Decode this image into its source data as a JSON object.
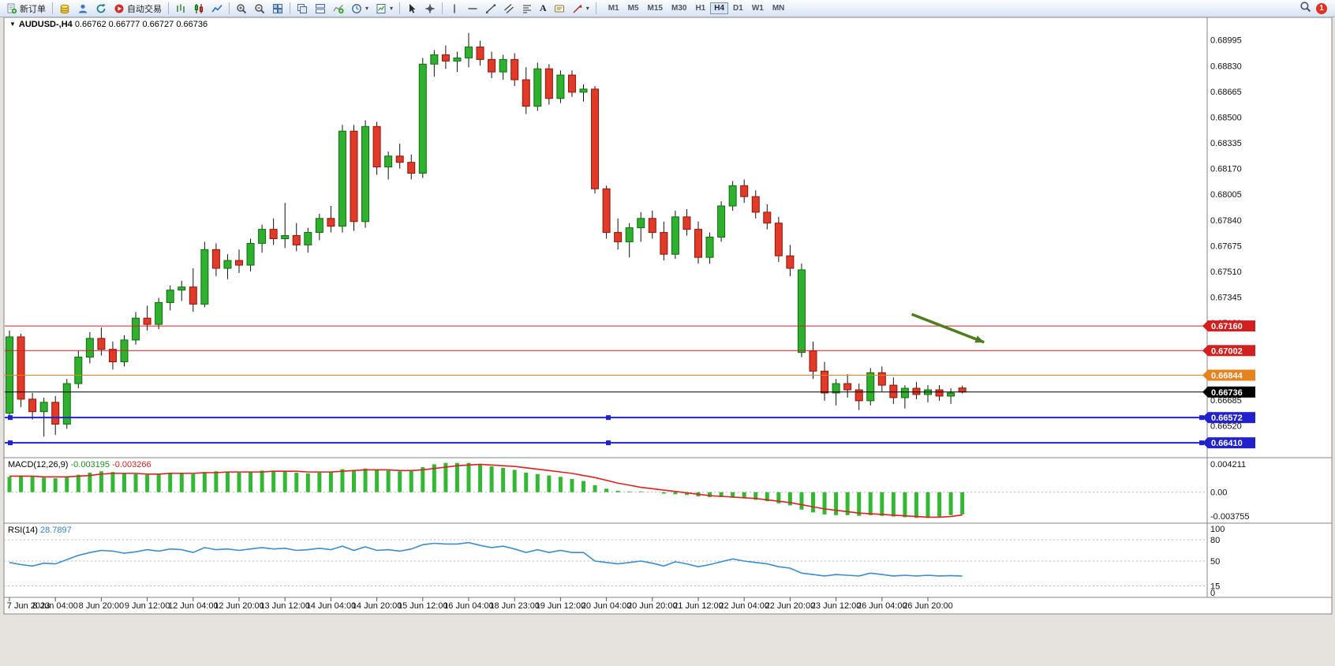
{
  "toolbar": {
    "new_order_label": "新订单",
    "autotrading_label": "自动交易",
    "text_tool_label": "A",
    "active_timeframe": "H4",
    "timeframes": [
      "M1",
      "M5",
      "M15",
      "M30",
      "H1",
      "H4",
      "D1",
      "W1",
      "MN"
    ],
    "notification_count": "1"
  },
  "chart_header": {
    "symbol": "AUDUSD-,H4",
    "open": "0.66762",
    "high": "0.66777",
    "low": "0.66727",
    "close": "0.66736"
  },
  "macd_panel": {
    "title": "MACD(12,26,9)",
    "value_main": "-0.003195",
    "value_signal": "-0.003266"
  },
  "rsi_panel": {
    "title": "RSI(14)",
    "value": "28.7897"
  },
  "colors": {
    "bull": "#2fb02f",
    "bull_edge": "#0c6e0c",
    "bear": "#e23a28",
    "bear_edge": "#8e1508",
    "wick": "#111111",
    "macd_hist": "#33b833",
    "macd_signal": "#e02020",
    "rsi_line": "#3c8cd0",
    "frame": "#848484",
    "grid_dash": "#b8b8b8",
    "arrow": "#4e7d1e"
  },
  "chart_data": {
    "type": "candlestick",
    "symbol": "AUDUSD",
    "timeframe": "H4",
    "ylim": [
      0.6634,
      0.6912
    ],
    "y_axis_labels": [
      0.68995,
      0.6883,
      0.68665,
      0.685,
      0.68335,
      0.6817,
      0.68005,
      0.6784,
      0.67675,
      0.6751,
      0.67345,
      0.6718,
      0.67015,
      0.6685,
      0.66685,
      0.6652
    ],
    "x_labels": [
      "7 Jun 2023",
      "8 Jun 04:00",
      "8 Jun 20:00",
      "9 Jun 12:00",
      "12 Jun 04:00",
      "12 Jun 20:00",
      "13 Jun 12:00",
      "14 Jun 04:00",
      "14 Jun 20:00",
      "15 Jun 12:00",
      "16 Jun 04:00",
      "18 Jun 23:00",
      "19 Jun 12:00",
      "20 Jun 04:00",
      "20 Jun 20:00",
      "21 Jun 12:00",
      "22 Jun 04:00",
      "22 Jun 20:00",
      "23 Jun 12:00",
      "26 Jun 04:00",
      "26 Jun 20:00"
    ],
    "candles": [
      [
        0.666,
        0.6713,
        0.6657,
        0.6709
      ],
      [
        0.6709,
        0.6711,
        0.6664,
        0.6669
      ],
      [
        0.6669,
        0.6673,
        0.6656,
        0.6661
      ],
      [
        0.6661,
        0.667,
        0.6645,
        0.6667
      ],
      [
        0.6667,
        0.6671,
        0.6646,
        0.6653
      ],
      [
        0.6653,
        0.6682,
        0.665,
        0.6679
      ],
      [
        0.6679,
        0.67,
        0.6676,
        0.6696
      ],
      [
        0.6696,
        0.6712,
        0.6692,
        0.6708
      ],
      [
        0.6708,
        0.6715,
        0.6697,
        0.6701
      ],
      [
        0.6701,
        0.6706,
        0.6688,
        0.6693
      ],
      [
        0.6693,
        0.671,
        0.669,
        0.6707
      ],
      [
        0.6707,
        0.6725,
        0.6704,
        0.6721
      ],
      [
        0.6721,
        0.6729,
        0.6713,
        0.6717
      ],
      [
        0.6717,
        0.6734,
        0.6714,
        0.6731
      ],
      [
        0.6731,
        0.6742,
        0.6726,
        0.6739
      ],
      [
        0.6739,
        0.6745,
        0.6732,
        0.6741
      ],
      [
        0.6741,
        0.6753,
        0.6725,
        0.673
      ],
      [
        0.673,
        0.677,
        0.6728,
        0.6765
      ],
      [
        0.6765,
        0.6769,
        0.6748,
        0.6753
      ],
      [
        0.6753,
        0.6762,
        0.6746,
        0.6758
      ],
      [
        0.6758,
        0.6765,
        0.675,
        0.6755
      ],
      [
        0.6755,
        0.6772,
        0.6751,
        0.6769
      ],
      [
        0.6769,
        0.6781,
        0.6763,
        0.6778
      ],
      [
        0.6778,
        0.6785,
        0.6768,
        0.6772
      ],
      [
        0.6772,
        0.6795,
        0.6766,
        0.6774
      ],
      [
        0.6774,
        0.6782,
        0.6764,
        0.6768
      ],
      [
        0.6768,
        0.6779,
        0.6763,
        0.6776
      ],
      [
        0.6776,
        0.6788,
        0.6771,
        0.6785
      ],
      [
        0.6785,
        0.6793,
        0.6776,
        0.678
      ],
      [
        0.678,
        0.6845,
        0.6776,
        0.6841
      ],
      [
        0.6841,
        0.6845,
        0.6777,
        0.6783
      ],
      [
        0.6783,
        0.6848,
        0.6779,
        0.6844
      ],
      [
        0.6844,
        0.6847,
        0.6813,
        0.6818
      ],
      [
        0.6818,
        0.6828,
        0.681,
        0.6825
      ],
      [
        0.6825,
        0.6833,
        0.6817,
        0.6821
      ],
      [
        0.6821,
        0.6826,
        0.681,
        0.6814
      ],
      [
        0.6814,
        0.6888,
        0.6811,
        0.6884
      ],
      [
        0.6884,
        0.6893,
        0.6876,
        0.689
      ],
      [
        0.689,
        0.6896,
        0.6881,
        0.6886
      ],
      [
        0.6886,
        0.6892,
        0.6879,
        0.6888
      ],
      [
        0.6888,
        0.6904,
        0.6882,
        0.6895
      ],
      [
        0.6895,
        0.6899,
        0.6883,
        0.6887
      ],
      [
        0.6887,
        0.6892,
        0.6875,
        0.6879
      ],
      [
        0.6879,
        0.689,
        0.6874,
        0.6887
      ],
      [
        0.6887,
        0.6891,
        0.687,
        0.6874
      ],
      [
        0.6874,
        0.6882,
        0.6852,
        0.6857
      ],
      [
        0.6857,
        0.6885,
        0.6854,
        0.6881
      ],
      [
        0.6881,
        0.6884,
        0.6858,
        0.6862
      ],
      [
        0.6862,
        0.688,
        0.6859,
        0.6877
      ],
      [
        0.6877,
        0.688,
        0.6863,
        0.6866
      ],
      [
        0.6866,
        0.6871,
        0.686,
        0.6868
      ],
      [
        0.6868,
        0.687,
        0.6801,
        0.6804
      ],
      [
        0.6804,
        0.6806,
        0.6772,
        0.6776
      ],
      [
        0.6776,
        0.6785,
        0.6765,
        0.677
      ],
      [
        0.677,
        0.6782,
        0.676,
        0.6779
      ],
      [
        0.6779,
        0.6789,
        0.677,
        0.6785
      ],
      [
        0.6785,
        0.679,
        0.6772,
        0.6776
      ],
      [
        0.6776,
        0.6783,
        0.6758,
        0.6762
      ],
      [
        0.6762,
        0.679,
        0.6759,
        0.6786
      ],
      [
        0.6786,
        0.6791,
        0.6774,
        0.6778
      ],
      [
        0.6778,
        0.6783,
        0.6756,
        0.676
      ],
      [
        0.676,
        0.6776,
        0.6756,
        0.6773
      ],
      [
        0.6773,
        0.6796,
        0.677,
        0.6793
      ],
      [
        0.6793,
        0.6809,
        0.679,
        0.6806
      ],
      [
        0.6806,
        0.681,
        0.6795,
        0.6799
      ],
      [
        0.6799,
        0.6803,
        0.6785,
        0.6789
      ],
      [
        0.6789,
        0.6794,
        0.6778,
        0.6782
      ],
      [
        0.6782,
        0.6786,
        0.6757,
        0.6761
      ],
      [
        0.6761,
        0.6768,
        0.6748,
        0.6753
      ],
      [
        0.6699,
        0.6756,
        0.6696,
        0.6752
      ],
      [
        0.67,
        0.6706,
        0.6682,
        0.6687
      ],
      [
        0.6687,
        0.6693,
        0.6668,
        0.6673
      ],
      [
        0.6673,
        0.6682,
        0.6665,
        0.6679
      ],
      [
        0.6679,
        0.6685,
        0.667,
        0.6675
      ],
      [
        0.6675,
        0.6679,
        0.6662,
        0.6668
      ],
      [
        0.6668,
        0.6689,
        0.6665,
        0.6686
      ],
      [
        0.6686,
        0.669,
        0.6674,
        0.6678
      ],
      [
        0.6678,
        0.6683,
        0.6666,
        0.667
      ],
      [
        0.667,
        0.6678,
        0.6663,
        0.6676
      ],
      [
        0.6676,
        0.668,
        0.6669,
        0.6672
      ],
      [
        0.6672,
        0.6678,
        0.6667,
        0.6675
      ],
      [
        0.6675,
        0.6678,
        0.6668,
        0.6671
      ],
      [
        0.6671,
        0.6676,
        0.6666,
        0.6673
      ],
      [
        0.66762,
        0.66777,
        0.66727,
        0.66736
      ]
    ],
    "price_lines": [
      {
        "price": 0.6716,
        "label": "0.67160",
        "color": "#d22020",
        "width": 1,
        "selected": false
      },
      {
        "price": 0.67002,
        "label": "0.67002",
        "color": "#d22020",
        "width": 1,
        "selected": false
      },
      {
        "price": 0.66844,
        "label": "0.66844",
        "color": "#e8821e",
        "width": 1,
        "selected": false
      },
      {
        "price": 0.66736,
        "label": "0.66736",
        "color": "#000000",
        "width": 1,
        "selected": false
      },
      {
        "price": 0.66572,
        "label": "0.66572",
        "color": "#2222cc",
        "width": 2,
        "selected": true
      },
      {
        "price": 0.6641,
        "label": "0.66410",
        "color": "#2222cc",
        "width": 2,
        "selected": true
      }
    ],
    "trend_arrow": {
      "from_index": 78.6,
      "from_price": 0.67235,
      "to_index": 84.9,
      "to_price": 0.67055
    },
    "macd": {
      "ylim": [
        -0.004,
        0.0045
      ],
      "axis_labels": [
        {
          "v": 0.004211,
          "t": "0.004211"
        },
        {
          "v": 0,
          "t": "0.00"
        },
        {
          "v": -0.003755,
          "t": "-0.003755"
        }
      ],
      "histogram": [
        0.0022,
        0.0024,
        0.0023,
        0.0021,
        0.002,
        0.0022,
        0.0025,
        0.0028,
        0.003,
        0.0029,
        0.0027,
        0.0026,
        0.0025,
        0.0026,
        0.0028,
        0.0028,
        0.0026,
        0.0029,
        0.003,
        0.0029,
        0.0028,
        0.0029,
        0.0031,
        0.0031,
        0.003,
        0.0028,
        0.0027,
        0.0028,
        0.0029,
        0.0033,
        0.0032,
        0.0034,
        0.0033,
        0.0031,
        0.003,
        0.0031,
        0.0036,
        0.004,
        0.0042,
        0.0042,
        0.0042,
        0.004,
        0.0037,
        0.0035,
        0.0032,
        0.0028,
        0.0026,
        0.0024,
        0.0022,
        0.0019,
        0.0016,
        0.001,
        0.0005,
        0.0002,
        0.0001,
        0.0001,
        0.0,
        -0.0002,
        -0.0003,
        -0.0004,
        -0.0006,
        -0.0007,
        -0.0007,
        -0.0008,
        -0.0009,
        -0.0011,
        -0.0013,
        -0.0016,
        -0.0019,
        -0.0025,
        -0.0029,
        -0.0032,
        -0.0033,
        -0.0033,
        -0.0034,
        -0.0033,
        -0.0034,
        -0.0035,
        -0.0036,
        -0.0037,
        -0.0037,
        -0.0035,
        -0.0033,
        -0.003195
      ],
      "signal": [
        0.0023,
        0.0023,
        0.0023,
        0.0022,
        0.0022,
        0.0022,
        0.0023,
        0.0024,
        0.0026,
        0.0027,
        0.0027,
        0.0027,
        0.0026,
        0.0026,
        0.0027,
        0.0027,
        0.0027,
        0.0028,
        0.0028,
        0.0029,
        0.0029,
        0.0029,
        0.0029,
        0.003,
        0.003,
        0.003,
        0.0029,
        0.0029,
        0.0029,
        0.003,
        0.0031,
        0.0032,
        0.0032,
        0.0032,
        0.0031,
        0.0031,
        0.0032,
        0.0034,
        0.0036,
        0.0038,
        0.0039,
        0.004,
        0.0039,
        0.0038,
        0.0037,
        0.0035,
        0.0033,
        0.0031,
        0.0029,
        0.0027,
        0.0024,
        0.0021,
        0.0017,
        0.0013,
        0.001,
        0.0007,
        0.0005,
        0.0003,
        0.0001,
        -0.0001,
        -0.0003,
        -0.0005,
        -0.0006,
        -0.0007,
        -0.0008,
        -0.0009,
        -0.0011,
        -0.0013,
        -0.0015,
        -0.0018,
        -0.0021,
        -0.0024,
        -0.0026,
        -0.0028,
        -0.003,
        -0.0031,
        -0.0032,
        -0.0033,
        -0.0034,
        -0.0035,
        -0.0036,
        -0.0036,
        -0.0035,
        -0.003266
      ]
    },
    "rsi": {
      "ylim": [
        0,
        100
      ],
      "axis_labels": [
        100,
        80,
        50,
        15,
        0
      ],
      "levels": [
        80,
        50,
        15
      ],
      "values": [
        48,
        45,
        43,
        47,
        46,
        52,
        58,
        62,
        65,
        64,
        61,
        63,
        66,
        64,
        67,
        66,
        62,
        69,
        66,
        67,
        65,
        67,
        69,
        67,
        68,
        65,
        66,
        68,
        66,
        71,
        65,
        70,
        65,
        66,
        64,
        67,
        73,
        75,
        74,
        74,
        76,
        72,
        69,
        71,
        67,
        62,
        66,
        62,
        65,
        62,
        62,
        50,
        48,
        46,
        48,
        50,
        47,
        43,
        49,
        46,
        42,
        45,
        49,
        53,
        50,
        48,
        46,
        42,
        40,
        33,
        31,
        29,
        31,
        30,
        29,
        33,
        31,
        29,
        30,
        29,
        30,
        29,
        29.5,
        28.7897
      ]
    }
  }
}
